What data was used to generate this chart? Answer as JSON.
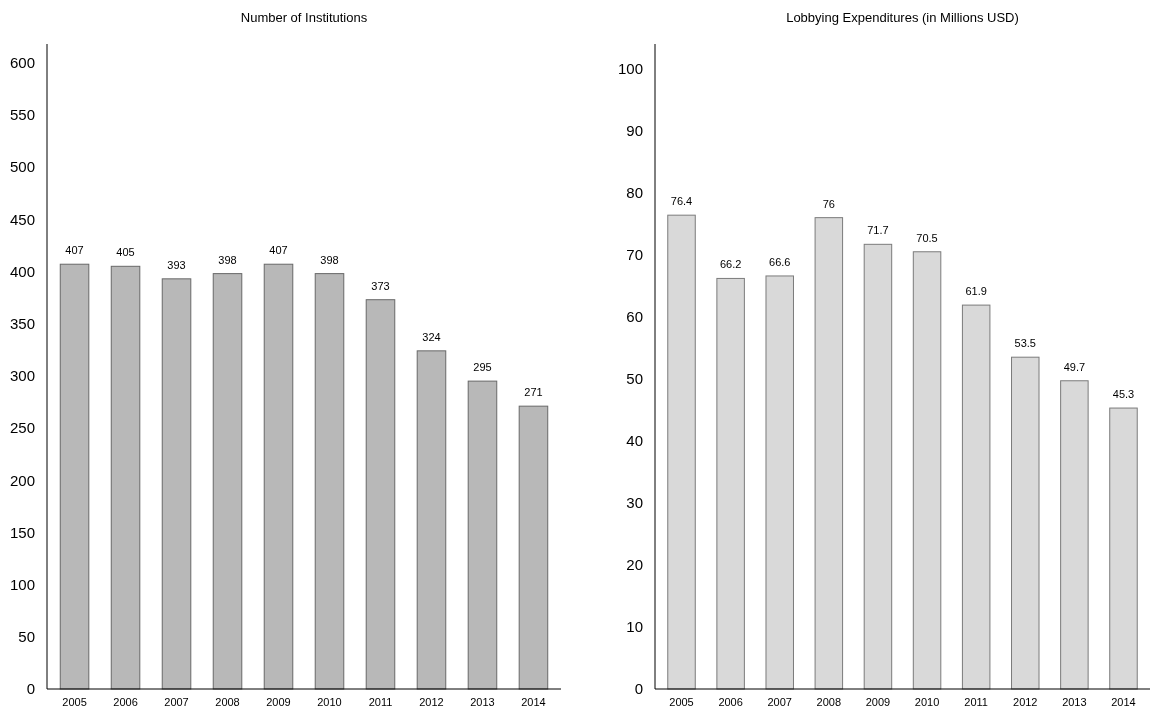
{
  "chart_data": [
    {
      "type": "bar",
      "title": "Number of Institutions",
      "categories": [
        "2005",
        "2006",
        "2007",
        "2008",
        "2009",
        "2010",
        "2011",
        "2012",
        "2013",
        "2014"
      ],
      "values": [
        407,
        405,
        393,
        398,
        407,
        398,
        373,
        324,
        295,
        271
      ],
      "color": "#b8b8b8",
      "data_labels": true,
      "ylim": [
        0,
        618
      ],
      "yticks": [
        0,
        50,
        100,
        150,
        200,
        250,
        300,
        350,
        400,
        450,
        500,
        550,
        600
      ],
      "grid": false
    },
    {
      "type": "bar",
      "title": "Lobbying Expenditures (in Millions USD)",
      "categories": [
        "2005",
        "2006",
        "2007",
        "2008",
        "2009",
        "2010",
        "2011",
        "2012",
        "2013",
        "2014"
      ],
      "values": [
        76.4,
        66.2,
        66.6,
        76,
        71.7,
        70.5,
        61.9,
        53.5,
        49.7,
        45.3
      ],
      "color": "#d9d9d9",
      "data_labels": true,
      "ylim": [
        0,
        104
      ],
      "yticks": [
        0,
        10,
        20,
        30,
        40,
        50,
        60,
        70,
        80,
        90,
        100
      ],
      "grid": false
    }
  ]
}
